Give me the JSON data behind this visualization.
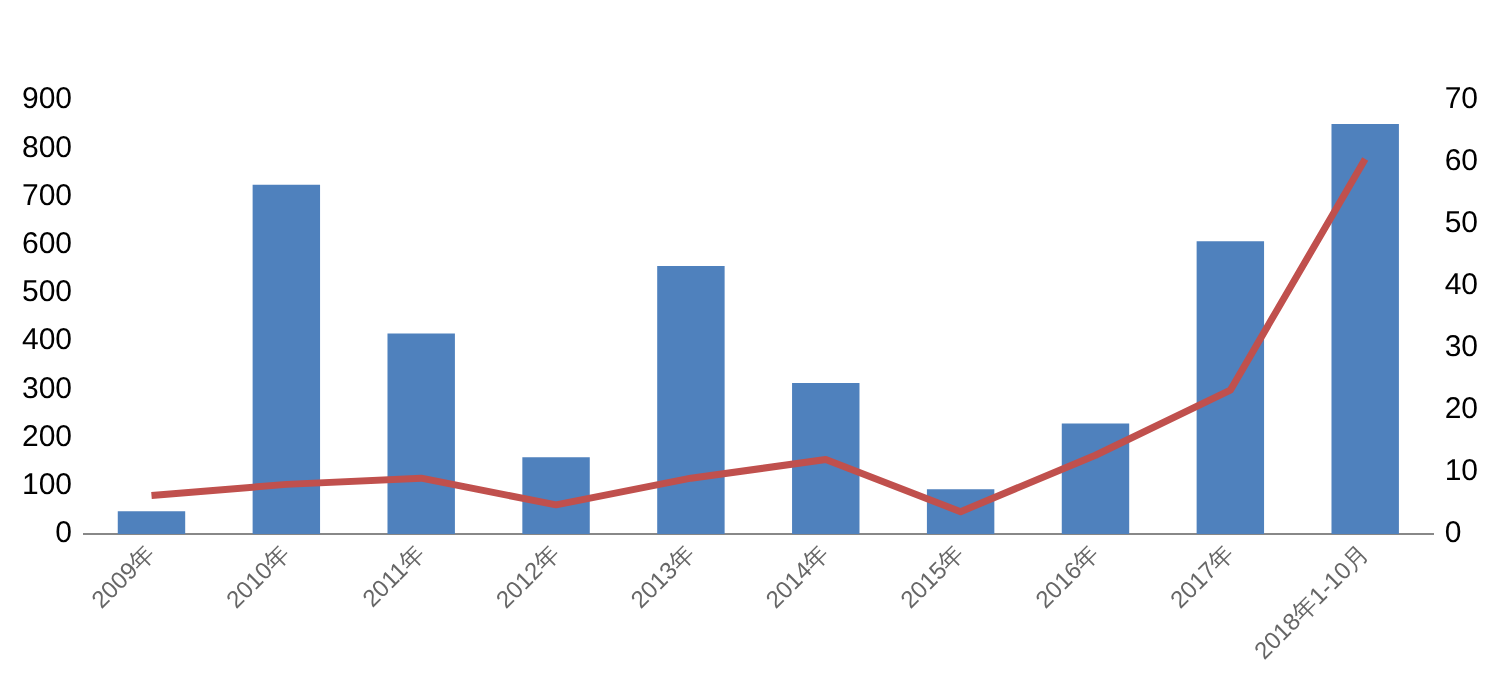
{
  "chart_data": {
    "type": "bar",
    "categories": [
      "2009年",
      "2010年",
      "2011年",
      "2012年",
      "2013年",
      "2014年",
      "2015年",
      "2016年",
      "2017年",
      "2018年1-10月"
    ],
    "series": [
      {
        "color": "#4f81bd",
        "values": [
          47,
          724,
          416,
          159,
          556,
          313,
          93,
          229,
          607,
          850
        ]
      },
      {
        "type": "line",
        "axis": "y2",
        "color": "#c0504d",
        "values": [
          6.2,
          8,
          9,
          4.7,
          9,
          12,
          3.6,
          12.7,
          23.2,
          60.5
        ]
      }
    ],
    "ylim": [
      0,
      900
    ],
    "yticks": [
      0,
      100,
      200,
      300,
      400,
      500,
      600,
      700,
      800,
      900
    ],
    "y2lim": [
      0,
      70
    ],
    "y2ticks": [
      0,
      10,
      20,
      30,
      40,
      50,
      60,
      70
    ],
    "grid": false,
    "legend": false,
    "marker": "none"
  }
}
